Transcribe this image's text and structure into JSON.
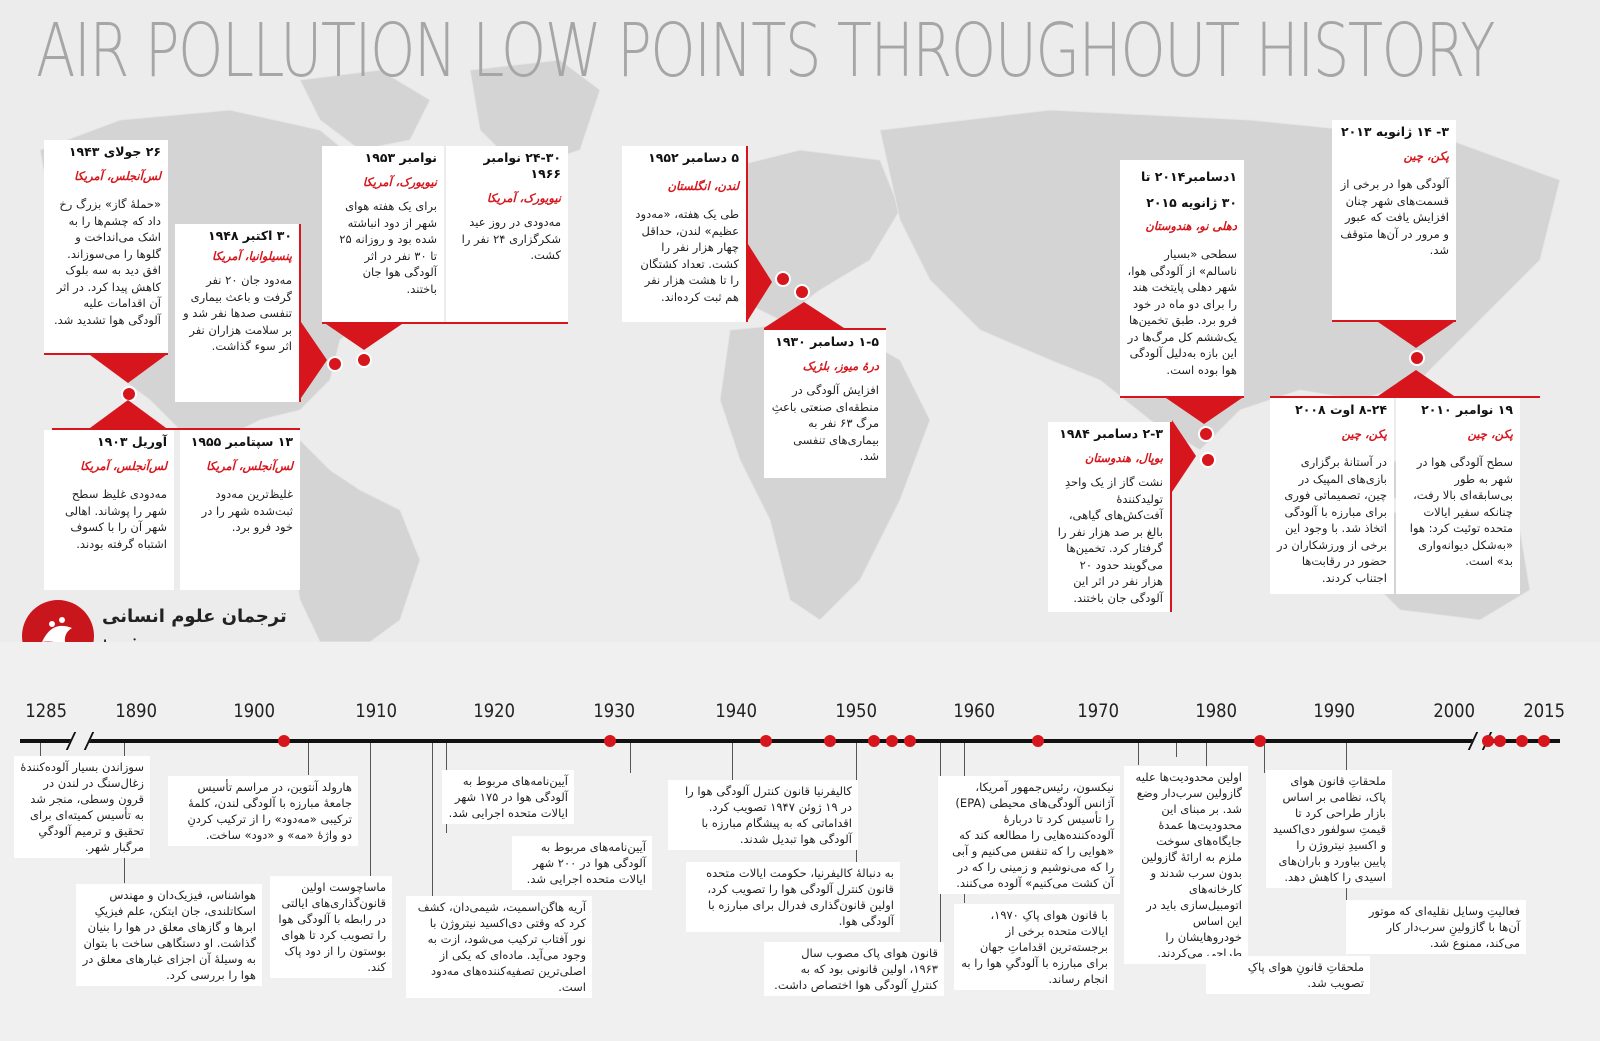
{
  "title": "AIR POLLUTION LOW POINTS THROUGHOUT HISTORY",
  "colors": {
    "accent": "#d6161c",
    "map": "#d3d3d3",
    "background": "#ececec"
  },
  "cards": [
    {
      "date": "۲۶ جولای ۱۹۴۳",
      "place": "لس‌آنجلس، آمریکا",
      "desc": "«حملهٔ گاز» بزرگ رخ داد که چشم‌ها را به اشک می‌انداخت و گلوها را می‌سوزاند. افق دید به سه بلوک کاهش پیدا کرد. در اثر آن اقدامات علیه آلودگی هوا تشدید شد."
    },
    {
      "date": "۳۰ اکتبر ۱۹۴۸",
      "place": "پنسیلوانیا، آمریکا",
      "desc": "مه‌دود جان ۲۰ نفر گرفت و باعث بیماری تنفسی صدها نفر شد و بر سلامت هزاران نفر اثر سوء گذاشت."
    },
    {
      "date": "نوامبر ۱۹۵۳",
      "place": "نیویورک، آمریکا",
      "desc": "برای یک هفته هوای شهر از دود انباشته شده بود و روزانه ۲۵ تا ۳۰ نفر در اثر آلودگی هوا جان باختند."
    },
    {
      "date": "۲۴-۳۰ نوامبر ۱۹۶۶",
      "place": "نیویورک، آمریکا",
      "desc": "مه‌دودی در روز عید شکرگزاری ۲۴ نفر را کشت."
    },
    {
      "date": "۵ دسامبر ۱۹۵۲",
      "place": "لندن، انگلستان",
      "desc": "طی یک هفته، «مه‌دود عظیم» لندن، حداقل چهار هزار نفر را کشت. تعداد کشتگان را تا هشت هزار نفر هم ثبت کرده‌اند."
    },
    {
      "date": "۱-۵ دسامبر ۱۹۳۰",
      "place": "درهٔ میوز، بلژیک",
      "desc": "افزایش آلودگی در منطقه‌ای صنعتی باعثِ مرگ ۶۳ نفر به بیماری‌های تنفسی شد."
    },
    {
      "date": "۱دسامبر۲۰۱۴ تا ۳۰ ژانویه ۲۰۱۵",
      "place": "دهلی نو، هندوستان",
      "desc": "سطحی «بسیار ناسالم» از آلودگی هوا، شهر دهلی پایتخت هند را برای دو ماه در خود فرو برد. طبق تخمین‌ها یک‌ششم کل مرگ‌ها در این بازه به‌دلیل آلودگی هوا بوده است."
    },
    {
      "date": "۳- ۱۴ ژانویه ۲۰۱۳",
      "place": "پکن، چین",
      "desc": "آلودگی هوا در برخی از قسمت‌های شهر چنان افزایش یافت که عبور و مرور در آن‌ها متوقف شد."
    },
    {
      "date": "۲-۳ دسامبر ۱۹۸۴",
      "place": "بوپال، هندوستان",
      "desc": "نشت گاز از یک واحدِ تولیدکنندهٔ آفت‌کش‌های گیاهی، بالغ بر صد هزار نفر را گرفتار کرد. تخمین‌ها می‌گویند حدود ۲۰ هزار نفر در اثر این آلودگی جان باختند."
    },
    {
      "date": "۸-۲۴ اوت ۲۰۰۸",
      "place": "پکن، چین",
      "desc": "در آستانهٔ برگزاری بازی‌های المپیک در چین، تصمیماتی فوری برای مبارزه با آلودگی اتخاذ شد. با وجود این برخی از ورزشکاران در حضور در رقابت‌ها اجتناب کردند."
    },
    {
      "date": "۱۹ نوامبر ۲۰۱۰",
      "place": "پکن، چین",
      "desc": "سطح آلودگی هوا در شهر به طور بی‌سابقه‌ای بالا رفت، چنانکه سفیر ایالات متحده توئیت کرد: هوا «به‌شکل دیوانه‌واری بد» است."
    },
    {
      "date": "آوریل ۱۹۰۳",
      "place": "لس‌آنجلس، آمریکا",
      "desc": "مه‌دودی غلیظ سطح شهر را پوشاند. اهالی شهر آن را با کسوف اشتباه گرفته بودند."
    },
    {
      "date": "۱۳ سپتامبر ۱۹۵۵",
      "place": "لس‌آنجلس، آمریکا",
      "desc": "غلیظ‌ترین مه‌دود ثبت‌شده شهر را در خود فرو برد."
    }
  ],
  "logo": {
    "name": "ترجمان علوم انسانی",
    "url": "tarjomaan.com"
  },
  "timeline": {
    "years": [
      "1285",
      "1890",
      "1900",
      "1910",
      "1920",
      "1930",
      "1940",
      "1950",
      "1960",
      "1970",
      "1980",
      "1990",
      "2000",
      "2015"
    ],
    "events": [
      "سوزاندن بسیار آلوده‌کنندهٔ زغال‌سنگ در لندن در قرون وسطی، منجر شد به تأسیس کمیته‌ای برای تحقیق و ترمیم آلودگیِ مرگبار شهر.",
      "هارولد آنتوین، در مراسم تأسیس جامعهٔ مبارزه با آلودگی لندن، کلمهٔ ترکیبی «مه‌دود» را از ترکیب کردنِ دو واژهٔ «مه» و «دود» ساخت.",
      "هواشناس، فیزیک‌دان و مهندس اسکاتلندی، جان ایتکن، علم فیزیکِ ابرها و گازهای معلق در هوا را بنیان گذاشت. او دستگاهی ساخت با بتوان به وسیلهٔ آن اجزای غبارهای معلق در هوا را بررسی کرد.",
      "ماساچوست اولین قانون‌گذاری‌های ایالتی در رابطه با آلودگی هوا را تصویب کرد تا هوای بوستون را از دود پاک کند.",
      "آیین‌نامه‌های مربوط به آلودگی هوا در ۱۷۵ شهر ایالات متحده اجرایی شد.",
      "آریه هاگن‌اسمیت، شیمی‌دان، کشف کرد که وقتی دی‌اکسید نیتروژن با نور آفتاب ترکیب می‌شود، ازت به وجود می‌آید. ماده‌ای که یکی از اصلی‌ترین تصفیه‌کننده‌های مه‌دود است.",
      "آیین‌نامه‌های مربوط به آلودگی هوا در ۲۰۰ شهر ایالات متحده اجرایی شد.",
      "کالیفرنیا قانون کنترل آلودگی هوا را در ۱۹ ژوئن ۱۹۴۷ تصویب کرد. اقداماتی که به پیشگام مبارزه با آلودگی هوا تبدیل شدند.",
      "به دنبالهٔ کالیفرنیا، حکومت ایالات متحده قانون کنترل آلودگی هوا را تصویب کرد، اولین قانون‌گذاری فدرال برای مبارزه با آلودگی هوا.",
      "قانون هوای پاک مصوب سال ۱۹۶۳، اولین قانونی بود که به کنترلِ آلودگی هوا اختصاص داشت.",
      "نیکسون، رئیس‌جمهور آمریکا، آژانس آلودگی‌های محیطی (EPA) را تأسیس کرد تا دربارهٔ آلوده‌کننده‌هایی را مطالعه کند که «هوایی را که تنفس می‌کنیم و آبی را که می‌نوشیم و زمینی را که در آن کشت می‌کنیم» آلوده می‌کنند.",
      "با قانون هوای پاکِ ۱۹۷۰، ایالات متحده برخی از برجسته‌ترین اقداماتِ جهان برای مبارزه با آلودگیِ هوا را به انجام رساند.",
      "اولین محدودیت‌ها علیه گازولین سرب‌دار وضع شد. بر مبنای این محدودیت‌ها عمدهٔ جایگاه‌های سوخت ملزم به ارائهٔ گازولین بدون سرب شدند و کارخانه‌های اتومبیل‌سازی باید در این اساس خودروهایشان را طراحی می‌کردند.",
      "ملحقاتِ قانونِ هوای پاکِ تصویب شد.",
      "ملحقاتِ قانون هوای پاک، نظامی بر اساس بازار طراحی کرد تا قیمتِ سولفور دی‌اکسید و اکسیدِ نیتروژن را پایین بیاورد و باران‌های اسیدی را کاهش دهد.",
      "فعالیتِ وسایل نقلیه‌ای که موتور آن‌ها با گازولینِ سرب‌دار کار می‌کند، ممنوع شد."
    ]
  }
}
